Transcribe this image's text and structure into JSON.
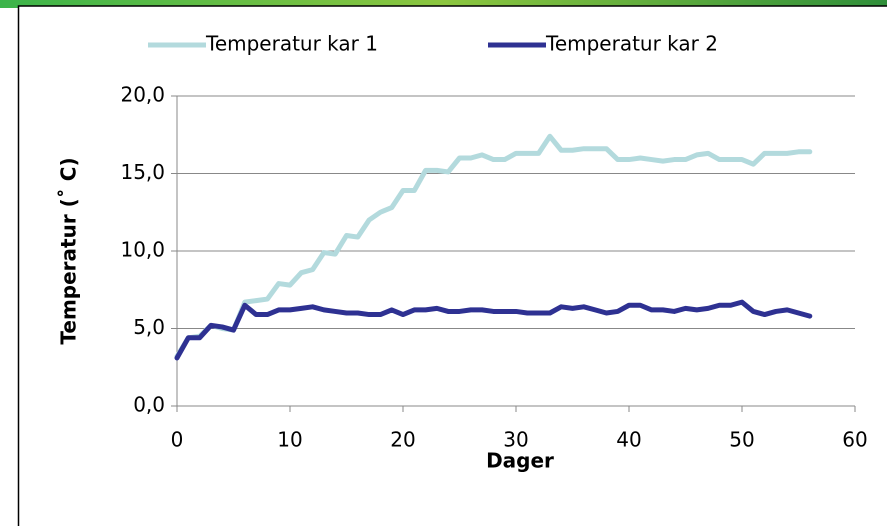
{
  "chart_data": {
    "type": "line",
    "xlabel": "Dager",
    "ylabel": "Temperatur (˚ C)",
    "x": [
      0,
      1,
      2,
      3,
      4,
      5,
      6,
      7,
      8,
      9,
      10,
      11,
      12,
      13,
      14,
      15,
      16,
      17,
      18,
      19,
      20,
      21,
      22,
      23,
      24,
      25,
      26,
      27,
      28,
      29,
      30,
      31,
      32,
      33,
      34,
      35,
      36,
      37,
      38,
      39,
      40,
      41,
      42,
      43,
      44,
      45,
      46,
      47,
      48,
      49,
      50,
      51,
      52,
      53,
      54,
      55,
      56
    ],
    "series": [
      {
        "name": "Temperatur kar 1",
        "color": "#b3dadd",
        "values": [
          3.2,
          4.4,
          4.5,
          5.2,
          5.0,
          4.9,
          6.7,
          6.8,
          6.9,
          7.9,
          7.8,
          8.6,
          8.8,
          9.9,
          9.8,
          11.0,
          10.9,
          12.0,
          12.5,
          12.8,
          13.9,
          13.9,
          15.2,
          15.2,
          15.1,
          16.0,
          16.0,
          16.2,
          15.9,
          15.9,
          16.3,
          16.3,
          16.3,
          17.4,
          16.5,
          16.5,
          16.6,
          16.6,
          16.6,
          15.9,
          15.9,
          16.0,
          15.9,
          15.8,
          15.9,
          15.9,
          16.2,
          16.3,
          15.9,
          15.9,
          15.9,
          15.6,
          16.3,
          16.3,
          16.3,
          16.4,
          16.4
        ]
      },
      {
        "name": "Temperatur kar 2",
        "color": "#2e3192",
        "values": [
          3.1,
          4.4,
          4.4,
          5.2,
          5.1,
          4.9,
          6.5,
          5.9,
          5.9,
          6.2,
          6.2,
          6.3,
          6.4,
          6.2,
          6.1,
          6.0,
          6.0,
          5.9,
          5.9,
          6.2,
          5.9,
          6.2,
          6.2,
          6.3,
          6.1,
          6.1,
          6.2,
          6.2,
          6.1,
          6.1,
          6.1,
          6.0,
          6.0,
          6.0,
          6.4,
          6.3,
          6.4,
          6.2,
          6.0,
          6.1,
          6.5,
          6.5,
          6.2,
          6.2,
          6.1,
          6.3,
          6.2,
          6.3,
          6.5,
          6.5,
          6.7,
          6.1,
          5.9,
          6.1,
          6.2,
          6.0,
          5.8
        ]
      }
    ],
    "xlim": [
      0,
      60
    ],
    "xticks": [
      0,
      10,
      20,
      30,
      40,
      50,
      60
    ],
    "ylim": [
      0,
      20
    ],
    "yticks": [
      {
        "value": 0,
        "label": "0,0"
      },
      {
        "value": 5,
        "label": "5,0"
      },
      {
        "value": 10,
        "label": "10,0"
      },
      {
        "value": 15,
        "label": "15,0"
      },
      {
        "value": 20,
        "label": "20,0"
      }
    ],
    "grid": true,
    "legend": "top"
  }
}
